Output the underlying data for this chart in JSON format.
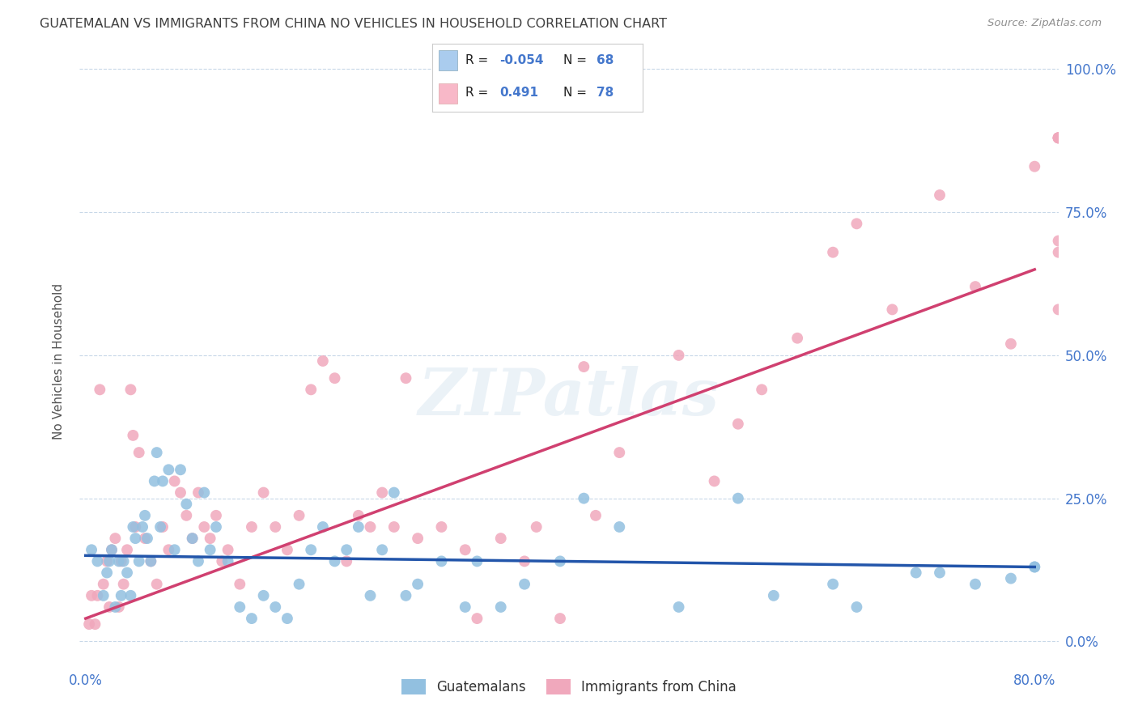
{
  "title": "GUATEMALAN VS IMMIGRANTS FROM CHINA NO VEHICLES IN HOUSEHOLD CORRELATION CHART",
  "source": "Source: ZipAtlas.com",
  "ylabel": "No Vehicles in Household",
  "ytick_labels": [
    "0.0%",
    "25.0%",
    "50.0%",
    "75.0%",
    "100.0%"
  ],
  "ytick_values": [
    0,
    25,
    50,
    75,
    100
  ],
  "xlim": [
    0,
    80
  ],
  "ylim": [
    0,
    100
  ],
  "r_blue": -0.054,
  "n_blue": 68,
  "r_pink": 0.491,
  "n_pink": 78,
  "blue_color": "#92c0e0",
  "pink_color": "#f0a8bc",
  "blue_line_color": "#2255aa",
  "pink_line_color": "#d04070",
  "title_color": "#444444",
  "axis_color": "#4477cc",
  "watermark": "ZIPatlas",
  "blue_x": [
    0.5,
    1.0,
    1.5,
    1.8,
    2.0,
    2.2,
    2.5,
    2.8,
    3.0,
    3.2,
    3.5,
    3.8,
    4.0,
    4.2,
    4.5,
    4.8,
    5.0,
    5.2,
    5.5,
    5.8,
    6.0,
    6.3,
    6.5,
    7.0,
    7.5,
    8.0,
    8.5,
    9.0,
    9.5,
    10.0,
    10.5,
    11.0,
    12.0,
    13.0,
    14.0,
    15.0,
    16.0,
    17.0,
    18.0,
    19.0,
    20.0,
    21.0,
    22.0,
    23.0,
    24.0,
    25.0,
    26.0,
    27.0,
    28.0,
    30.0,
    32.0,
    33.0,
    35.0,
    37.0,
    40.0,
    42.0,
    45.0,
    50.0,
    55.0,
    58.0,
    63.0,
    65.0,
    70.0,
    72.0,
    75.0,
    78.0,
    80.0,
    80.0
  ],
  "blue_y": [
    16.0,
    14.0,
    8.0,
    12.0,
    14.0,
    16.0,
    6.0,
    14.0,
    8.0,
    14.0,
    12.0,
    8.0,
    20.0,
    18.0,
    14.0,
    20.0,
    22.0,
    18.0,
    14.0,
    28.0,
    33.0,
    20.0,
    28.0,
    30.0,
    16.0,
    30.0,
    24.0,
    18.0,
    14.0,
    26.0,
    16.0,
    20.0,
    14.0,
    6.0,
    4.0,
    8.0,
    6.0,
    4.0,
    10.0,
    16.0,
    20.0,
    14.0,
    16.0,
    20.0,
    8.0,
    16.0,
    26.0,
    8.0,
    10.0,
    14.0,
    6.0,
    14.0,
    6.0,
    10.0,
    14.0,
    25.0,
    20.0,
    6.0,
    25.0,
    8.0,
    10.0,
    6.0,
    12.0,
    12.0,
    10.0,
    11.0,
    13.0,
    13.0
  ],
  "pink_x": [
    0.3,
    0.5,
    0.8,
    1.0,
    1.2,
    1.5,
    1.8,
    2.0,
    2.2,
    2.5,
    2.8,
    3.0,
    3.2,
    3.5,
    3.8,
    4.0,
    4.2,
    4.5,
    5.0,
    5.5,
    6.0,
    6.5,
    7.0,
    7.5,
    8.0,
    8.5,
    9.0,
    9.5,
    10.0,
    10.5,
    11.0,
    11.5,
    12.0,
    13.0,
    14.0,
    15.0,
    16.0,
    17.0,
    18.0,
    19.0,
    20.0,
    21.0,
    22.0,
    23.0,
    24.0,
    25.0,
    26.0,
    27.0,
    28.0,
    30.0,
    32.0,
    33.0,
    35.0,
    37.0,
    38.0,
    40.0,
    42.0,
    43.0,
    45.0,
    50.0,
    53.0,
    55.0,
    57.0,
    60.0,
    63.0,
    65.0,
    68.0,
    72.0,
    75.0,
    78.0,
    80.0,
    82.0,
    82.0,
    82.0,
    82.0,
    82.0,
    82.0,
    82.0
  ],
  "pink_y": [
    3.0,
    8.0,
    3.0,
    8.0,
    44.0,
    10.0,
    14.0,
    6.0,
    16.0,
    18.0,
    6.0,
    14.0,
    10.0,
    16.0,
    44.0,
    36.0,
    20.0,
    33.0,
    18.0,
    14.0,
    10.0,
    20.0,
    16.0,
    28.0,
    26.0,
    22.0,
    18.0,
    26.0,
    20.0,
    18.0,
    22.0,
    14.0,
    16.0,
    10.0,
    20.0,
    26.0,
    20.0,
    16.0,
    22.0,
    44.0,
    49.0,
    46.0,
    14.0,
    22.0,
    20.0,
    26.0,
    20.0,
    46.0,
    18.0,
    20.0,
    16.0,
    4.0,
    18.0,
    14.0,
    20.0,
    4.0,
    48.0,
    22.0,
    33.0,
    50.0,
    28.0,
    38.0,
    44.0,
    53.0,
    68.0,
    73.0,
    58.0,
    78.0,
    62.0,
    52.0,
    83.0,
    68.0,
    70.0,
    58.0,
    88.0,
    88.0,
    88.0,
    88.0
  ]
}
